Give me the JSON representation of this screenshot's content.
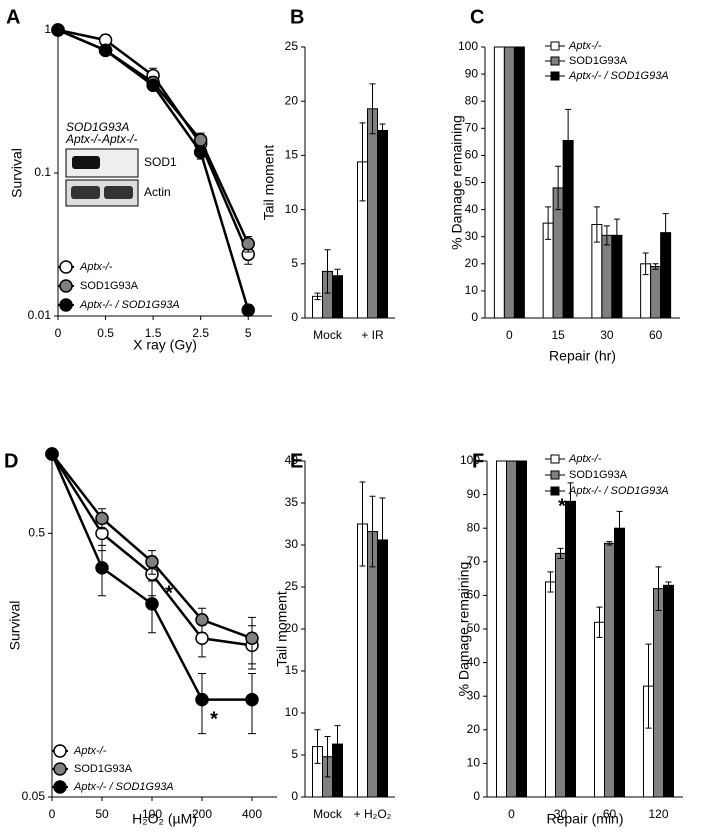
{
  "chart_data": [
    {
      "type": "line",
      "panel": "A",
      "x_label": "X ray (Gy)",
      "y_label": "Survival",
      "log_y": true,
      "categories": [
        "0",
        "0.5",
        "1.5",
        "2.5",
        "5"
      ],
      "ylim": [
        0.01,
        1
      ],
      "yticks": [
        0.01,
        0.1,
        1
      ],
      "legend": "lower left",
      "series": [
        {
          "name": "Aptx-/-",
          "color": "#ffffff",
          "values": [
            1,
            0.85,
            0.48,
            0.16,
            0.027
          ],
          "errors": [
            0,
            0.08,
            0.06,
            0.02,
            0.004
          ]
        },
        {
          "name": "SOD1G93A",
          "color": "#808080",
          "values": [
            1,
            0.72,
            0.43,
            0.17,
            0.032
          ],
          "errors": [
            0,
            0.05,
            0.04,
            0.02,
            0.004
          ]
        },
        {
          "name": "Aptx-/- / SOD1G93A",
          "color": "#000000",
          "values": [
            1,
            0.72,
            0.41,
            0.14,
            0.011
          ],
          "errors": [
            0,
            0.05,
            0.03,
            0.015,
            0.001
          ]
        }
      ],
      "inset": {
        "header": [
          "SOD1G93A",
          "Aptx-/-",
          "Aptx-/-"
        ],
        "bands": [
          "SOD1",
          "Actin"
        ]
      }
    },
    {
      "type": "bar",
      "panel": "B",
      "y_label": "Tail moment",
      "categories": [
        "Mock",
        "+ IR"
      ],
      "ylim": [
        0,
        25
      ],
      "yticks": [
        0,
        5,
        10,
        15,
        20,
        25
      ],
      "series": [
        {
          "name": "Aptx-/-",
          "color": "#ffffff",
          "values": [
            2.0,
            14.4
          ],
          "errors": [
            0.3,
            3.6
          ]
        },
        {
          "name": "SOD1G93A",
          "color": "#808080",
          "values": [
            4.3,
            19.3
          ],
          "errors": [
            2.0,
            2.3
          ]
        },
        {
          "name": "Aptx-/- / SOD1G93A",
          "color": "#000000",
          "values": [
            3.9,
            17.3
          ],
          "errors": [
            0.6,
            0.6
          ]
        }
      ]
    },
    {
      "type": "bar",
      "panel": "C",
      "x_label": "Repair (hr)",
      "y_label": "% Damage remaining",
      "categories": [
        "0",
        "15",
        "30",
        "60"
      ],
      "ylim": [
        0,
        100
      ],
      "yticks": [
        0,
        10,
        20,
        30,
        40,
        50,
        60,
        70,
        80,
        90,
        100
      ],
      "legend": "upper right",
      "series": [
        {
          "name": "Aptx-/-",
          "color": "#ffffff",
          "values": [
            100,
            35,
            34.5,
            20
          ],
          "errors": [
            0,
            6,
            6.5,
            4
          ]
        },
        {
          "name": "SOD1G93A",
          "color": "#808080",
          "values": [
            100,
            48,
            30.5,
            19
          ],
          "errors": [
            0,
            8,
            3.5,
            1
          ]
        },
        {
          "name": "Aptx-/- / SOD1G93A",
          "color": "#000000",
          "values": [
            100,
            65.5,
            30.5,
            31.5
          ],
          "errors": [
            0,
            11.5,
            6,
            7
          ]
        }
      ]
    },
    {
      "type": "line",
      "panel": "D",
      "x_label": "H₂O₂ (µM)",
      "y_label": "Survival",
      "log_y": true,
      "categories": [
        "0",
        "50",
        "100",
        "200",
        "400"
      ],
      "ylim": [
        0.05,
        1
      ],
      "yticks": [
        0.05,
        0.5
      ],
      "legend": "lower left",
      "series": [
        {
          "name": "Aptx-/-",
          "color": "#ffffff",
          "values": [
            1,
            0.5,
            0.35,
            0.2,
            0.188
          ],
          "errors": [
            0,
            0.07,
            0.06,
            0.03,
            0.035
          ]
        },
        {
          "name": "SOD1G93A",
          "color": "#808080",
          "values": [
            1,
            0.57,
            0.39,
            0.235,
            0.2
          ],
          "errors": [
            0,
            0.05,
            0.04,
            0.025,
            0.04
          ]
        },
        {
          "name": "Aptx-/- / SOD1G93A",
          "color": "#000000",
          "values": [
            1,
            0.37,
            0.27,
            0.117,
            0.117
          ],
          "errors": [
            0,
            0.08,
            0.06,
            0.03,
            0.03
          ]
        }
      ],
      "annotations": [
        "*",
        "*"
      ]
    },
    {
      "type": "bar",
      "panel": "E",
      "y_label": "Tail moment",
      "categories": [
        "Mock",
        "+ H₂O₂"
      ],
      "ylim": [
        0,
        40
      ],
      "yticks": [
        0,
        5,
        10,
        15,
        20,
        25,
        30,
        35,
        40
      ],
      "series": [
        {
          "name": "Aptx-/-",
          "color": "#ffffff",
          "values": [
            6,
            32.5
          ],
          "errors": [
            2,
            5
          ]
        },
        {
          "name": "SOD1G93A",
          "color": "#808080",
          "values": [
            4.8,
            31.6
          ],
          "errors": [
            2.4,
            4.2
          ]
        },
        {
          "name": "Aptx-/- / SOD1G93A",
          "color": "#000000",
          "values": [
            6.3,
            30.6
          ],
          "errors": [
            2.2,
            5
          ]
        }
      ]
    },
    {
      "type": "bar",
      "panel": "F",
      "x_label": "Repair (min)",
      "y_label": "% Damage remaining",
      "categories": [
        "0",
        "30",
        "60",
        "120"
      ],
      "ylim": [
        0,
        100
      ],
      "yticks": [
        0,
        10,
        20,
        30,
        40,
        50,
        60,
        70,
        80,
        90,
        100
      ],
      "legend": "upper right",
      "series": [
        {
          "name": "Aptx-/-",
          "color": "#ffffff",
          "values": [
            100,
            64,
            52,
            33
          ],
          "errors": [
            0,
            3,
            4.5,
            12.5
          ]
        },
        {
          "name": "SOD1G93A",
          "color": "#808080",
          "values": [
            100,
            72.5,
            75.5,
            62
          ],
          "errors": [
            0,
            1.5,
            0.5,
            6.5
          ]
        },
        {
          "name": "Aptx-/- / SOD1G93A",
          "color": "#000000",
          "values": [
            100,
            88,
            80,
            63
          ],
          "errors": [
            0,
            5.5,
            5,
            1
          ]
        }
      ],
      "annotations": [
        "*"
      ]
    }
  ]
}
